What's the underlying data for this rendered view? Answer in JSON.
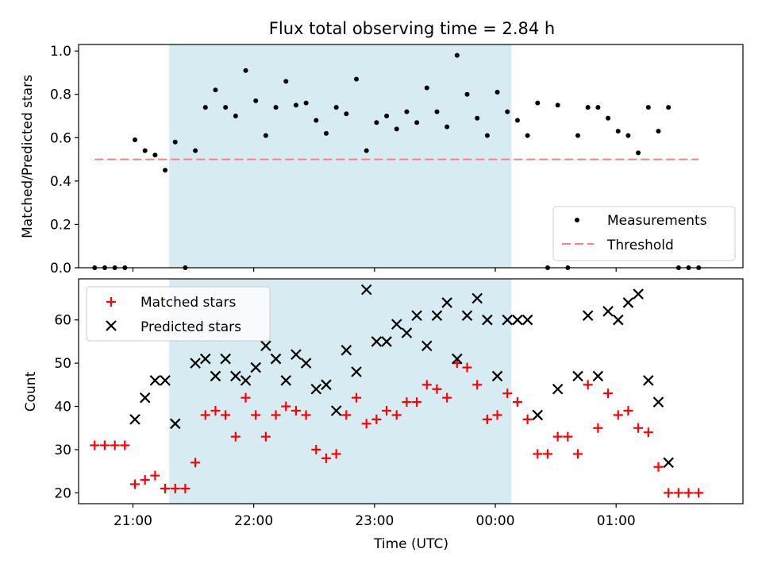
{
  "figure": {
    "title": "Flux total observing time = 2.84 h",
    "shade_color": "#add8e6",
    "shade_range": [
      "21:18",
      "00:08"
    ]
  },
  "chart_data": [
    {
      "type": "scatter",
      "ylabel": "Matched/Predicted stars",
      "xlim": [
        "20:33",
        "02:03"
      ],
      "ylim": [
        0,
        1.03
      ],
      "yticks": [
        "0.0",
        "0.2",
        "0.4",
        "0.6",
        "0.8",
        "1.0"
      ],
      "legend_placement": "lower-right",
      "series": [
        {
          "name": "Measurements",
          "marker": "dot",
          "color": "#000000",
          "points": [
            [
              "20:41",
              0
            ],
            [
              "20:46",
              0
            ],
            [
              "20:51",
              0
            ],
            [
              "20:56",
              0
            ],
            [
              "21:01",
              0.59
            ],
            [
              "21:06",
              0.54
            ],
            [
              "21:11",
              0.52
            ],
            [
              "21:16",
              0.45
            ],
            [
              "21:21",
              0.58
            ],
            [
              "21:26",
              0
            ],
            [
              "21:31",
              0.54
            ],
            [
              "21:36",
              0.74
            ],
            [
              "21:41",
              0.82
            ],
            [
              "21:46",
              0.74
            ],
            [
              "21:51",
              0.7
            ],
            [
              "21:56",
              0.91
            ],
            [
              "22:01",
              0.77
            ],
            [
              "22:06",
              0.61
            ],
            [
              "22:11",
              0.74
            ],
            [
              "22:16",
              0.86
            ],
            [
              "22:21",
              0.75
            ],
            [
              "22:26",
              0.76
            ],
            [
              "22:31",
              0.68
            ],
            [
              "22:36",
              0.62
            ],
            [
              "22:41",
              0.74
            ],
            [
              "22:46",
              0.71
            ],
            [
              "22:51",
              0.87
            ],
            [
              "22:56",
              0.54
            ],
            [
              "23:01",
              0.67
            ],
            [
              "23:06",
              0.7
            ],
            [
              "23:11",
              0.64
            ],
            [
              "23:16",
              0.72
            ],
            [
              "23:21",
              0.67
            ],
            [
              "23:26",
              0.83
            ],
            [
              "23:31",
              0.72
            ],
            [
              "23:36",
              0.65
            ],
            [
              "23:41",
              0.98
            ],
            [
              "23:46",
              0.8
            ],
            [
              "23:51",
              0.69
            ],
            [
              "23:56",
              0.61
            ],
            [
              "00:01",
              0.81
            ],
            [
              "00:06",
              0.72
            ],
            [
              "00:11",
              0.68
            ],
            [
              "00:16",
              0.61
            ],
            [
              "00:21",
              0.76
            ],
            [
              "00:26",
              0
            ],
            [
              "00:31",
              0.75
            ],
            [
              "00:36",
              0
            ],
            [
              "00:41",
              0.61
            ],
            [
              "00:46",
              0.74
            ],
            [
              "00:51",
              0.74
            ],
            [
              "00:56",
              0.69
            ],
            [
              "01:01",
              0.63
            ],
            [
              "01:06",
              0.61
            ],
            [
              "01:11",
              0.53
            ],
            [
              "01:16",
              0.74
            ],
            [
              "01:21",
              0.63
            ],
            [
              "01:26",
              0.74
            ],
            [
              "01:31",
              0
            ],
            [
              "01:36",
              0
            ],
            [
              "01:41",
              0
            ]
          ]
        },
        {
          "name": "Threshold",
          "marker": "dashed-line",
          "color": "#ff7f7f",
          "points": [
            [
              "20:41",
              0.5
            ],
            [
              "01:41",
              0.5
            ]
          ]
        }
      ]
    },
    {
      "type": "scatter",
      "xlabel": "Time (UTC)",
      "ylabel": "Count",
      "xlim": [
        "20:33",
        "02:03"
      ],
      "ylim": [
        17.5,
        69.5
      ],
      "yticks": [
        "20",
        "30",
        "40",
        "50",
        "60"
      ],
      "xticks": [
        "21:00",
        "22:00",
        "23:00",
        "00:00",
        "01:00"
      ],
      "legend_placement": "upper-left",
      "series": [
        {
          "name": "Matched stars",
          "marker": "plus",
          "color": "#ff0000",
          "points": [
            [
              "20:41",
              31
            ],
            [
              "20:46",
              31
            ],
            [
              "20:51",
              31
            ],
            [
              "20:56",
              31
            ],
            [
              "21:01",
              22
            ],
            [
              "21:06",
              23
            ],
            [
              "21:11",
              24
            ],
            [
              "21:16",
              21
            ],
            [
              "21:21",
              21
            ],
            [
              "21:26",
              21
            ],
            [
              "21:31",
              27
            ],
            [
              "21:36",
              38
            ],
            [
              "21:41",
              39
            ],
            [
              "21:46",
              38
            ],
            [
              "21:51",
              33
            ],
            [
              "21:56",
              42
            ],
            [
              "22:01",
              38
            ],
            [
              "22:06",
              33
            ],
            [
              "22:11",
              38
            ],
            [
              "22:16",
              40
            ],
            [
              "22:21",
              39
            ],
            [
              "22:26",
              38
            ],
            [
              "22:31",
              30
            ],
            [
              "22:36",
              28
            ],
            [
              "22:41",
              29
            ],
            [
              "22:46",
              38
            ],
            [
              "22:51",
              42
            ],
            [
              "22:56",
              36
            ],
            [
              "23:01",
              37
            ],
            [
              "23:06",
              39
            ],
            [
              "23:11",
              38
            ],
            [
              "23:16",
              41
            ],
            [
              "23:21",
              41
            ],
            [
              "23:26",
              45
            ],
            [
              "23:31",
              44
            ],
            [
              "23:36",
              42
            ],
            [
              "23:41",
              50
            ],
            [
              "23:46",
              49
            ],
            [
              "23:51",
              45
            ],
            [
              "23:56",
              37
            ],
            [
              "00:01",
              38
            ],
            [
              "00:06",
              43
            ],
            [
              "00:11",
              41
            ],
            [
              "00:16",
              37
            ],
            [
              "00:21",
              29
            ],
            [
              "00:26",
              29
            ],
            [
              "00:31",
              33
            ],
            [
              "00:36",
              33
            ],
            [
              "00:41",
              29
            ],
            [
              "00:46",
              45
            ],
            [
              "00:51",
              35
            ],
            [
              "00:56",
              43
            ],
            [
              "01:01",
              38
            ],
            [
              "01:06",
              39
            ],
            [
              "01:11",
              35
            ],
            [
              "01:16",
              34
            ],
            [
              "01:21",
              26
            ],
            [
              "01:26",
              20
            ],
            [
              "01:31",
              20
            ],
            [
              "01:36",
              20
            ],
            [
              "01:41",
              20
            ]
          ]
        },
        {
          "name": "Predicted stars",
          "marker": "x",
          "color": "#000000",
          "points": [
            [
              "21:01",
              37
            ],
            [
              "21:06",
              42
            ],
            [
              "21:11",
              46
            ],
            [
              "21:16",
              46
            ],
            [
              "21:21",
              36
            ],
            [
              "21:31",
              50
            ],
            [
              "21:36",
              51
            ],
            [
              "21:41",
              47
            ],
            [
              "21:46",
              51
            ],
            [
              "21:51",
              47
            ],
            [
              "21:56",
              46
            ],
            [
              "22:01",
              49
            ],
            [
              "22:06",
              54
            ],
            [
              "22:11",
              51
            ],
            [
              "22:16",
              46
            ],
            [
              "22:21",
              52
            ],
            [
              "22:26",
              50
            ],
            [
              "22:31",
              44
            ],
            [
              "22:36",
              45
            ],
            [
              "22:41",
              39
            ],
            [
              "22:46",
              53
            ],
            [
              "22:51",
              48
            ],
            [
              "22:56",
              67
            ],
            [
              "23:01",
              55
            ],
            [
              "23:06",
              55
            ],
            [
              "23:11",
              59
            ],
            [
              "23:16",
              57
            ],
            [
              "23:21",
              61
            ],
            [
              "23:26",
              54
            ],
            [
              "23:31",
              61
            ],
            [
              "23:36",
              64
            ],
            [
              "23:41",
              51
            ],
            [
              "23:46",
              61
            ],
            [
              "23:51",
              65
            ],
            [
              "23:56",
              60
            ],
            [
              "00:01",
              47
            ],
            [
              "00:06",
              60
            ],
            [
              "00:11",
              60
            ],
            [
              "00:16",
              60
            ],
            [
              "00:21",
              38
            ],
            [
              "00:31",
              44
            ],
            [
              "00:41",
              47
            ],
            [
              "00:46",
              61
            ],
            [
              "00:51",
              47
            ],
            [
              "00:56",
              62
            ],
            [
              "01:01",
              60
            ],
            [
              "01:06",
              64
            ],
            [
              "01:11",
              66
            ],
            [
              "01:16",
              46
            ],
            [
              "01:21",
              41
            ],
            [
              "01:26",
              27
            ]
          ]
        }
      ]
    }
  ]
}
